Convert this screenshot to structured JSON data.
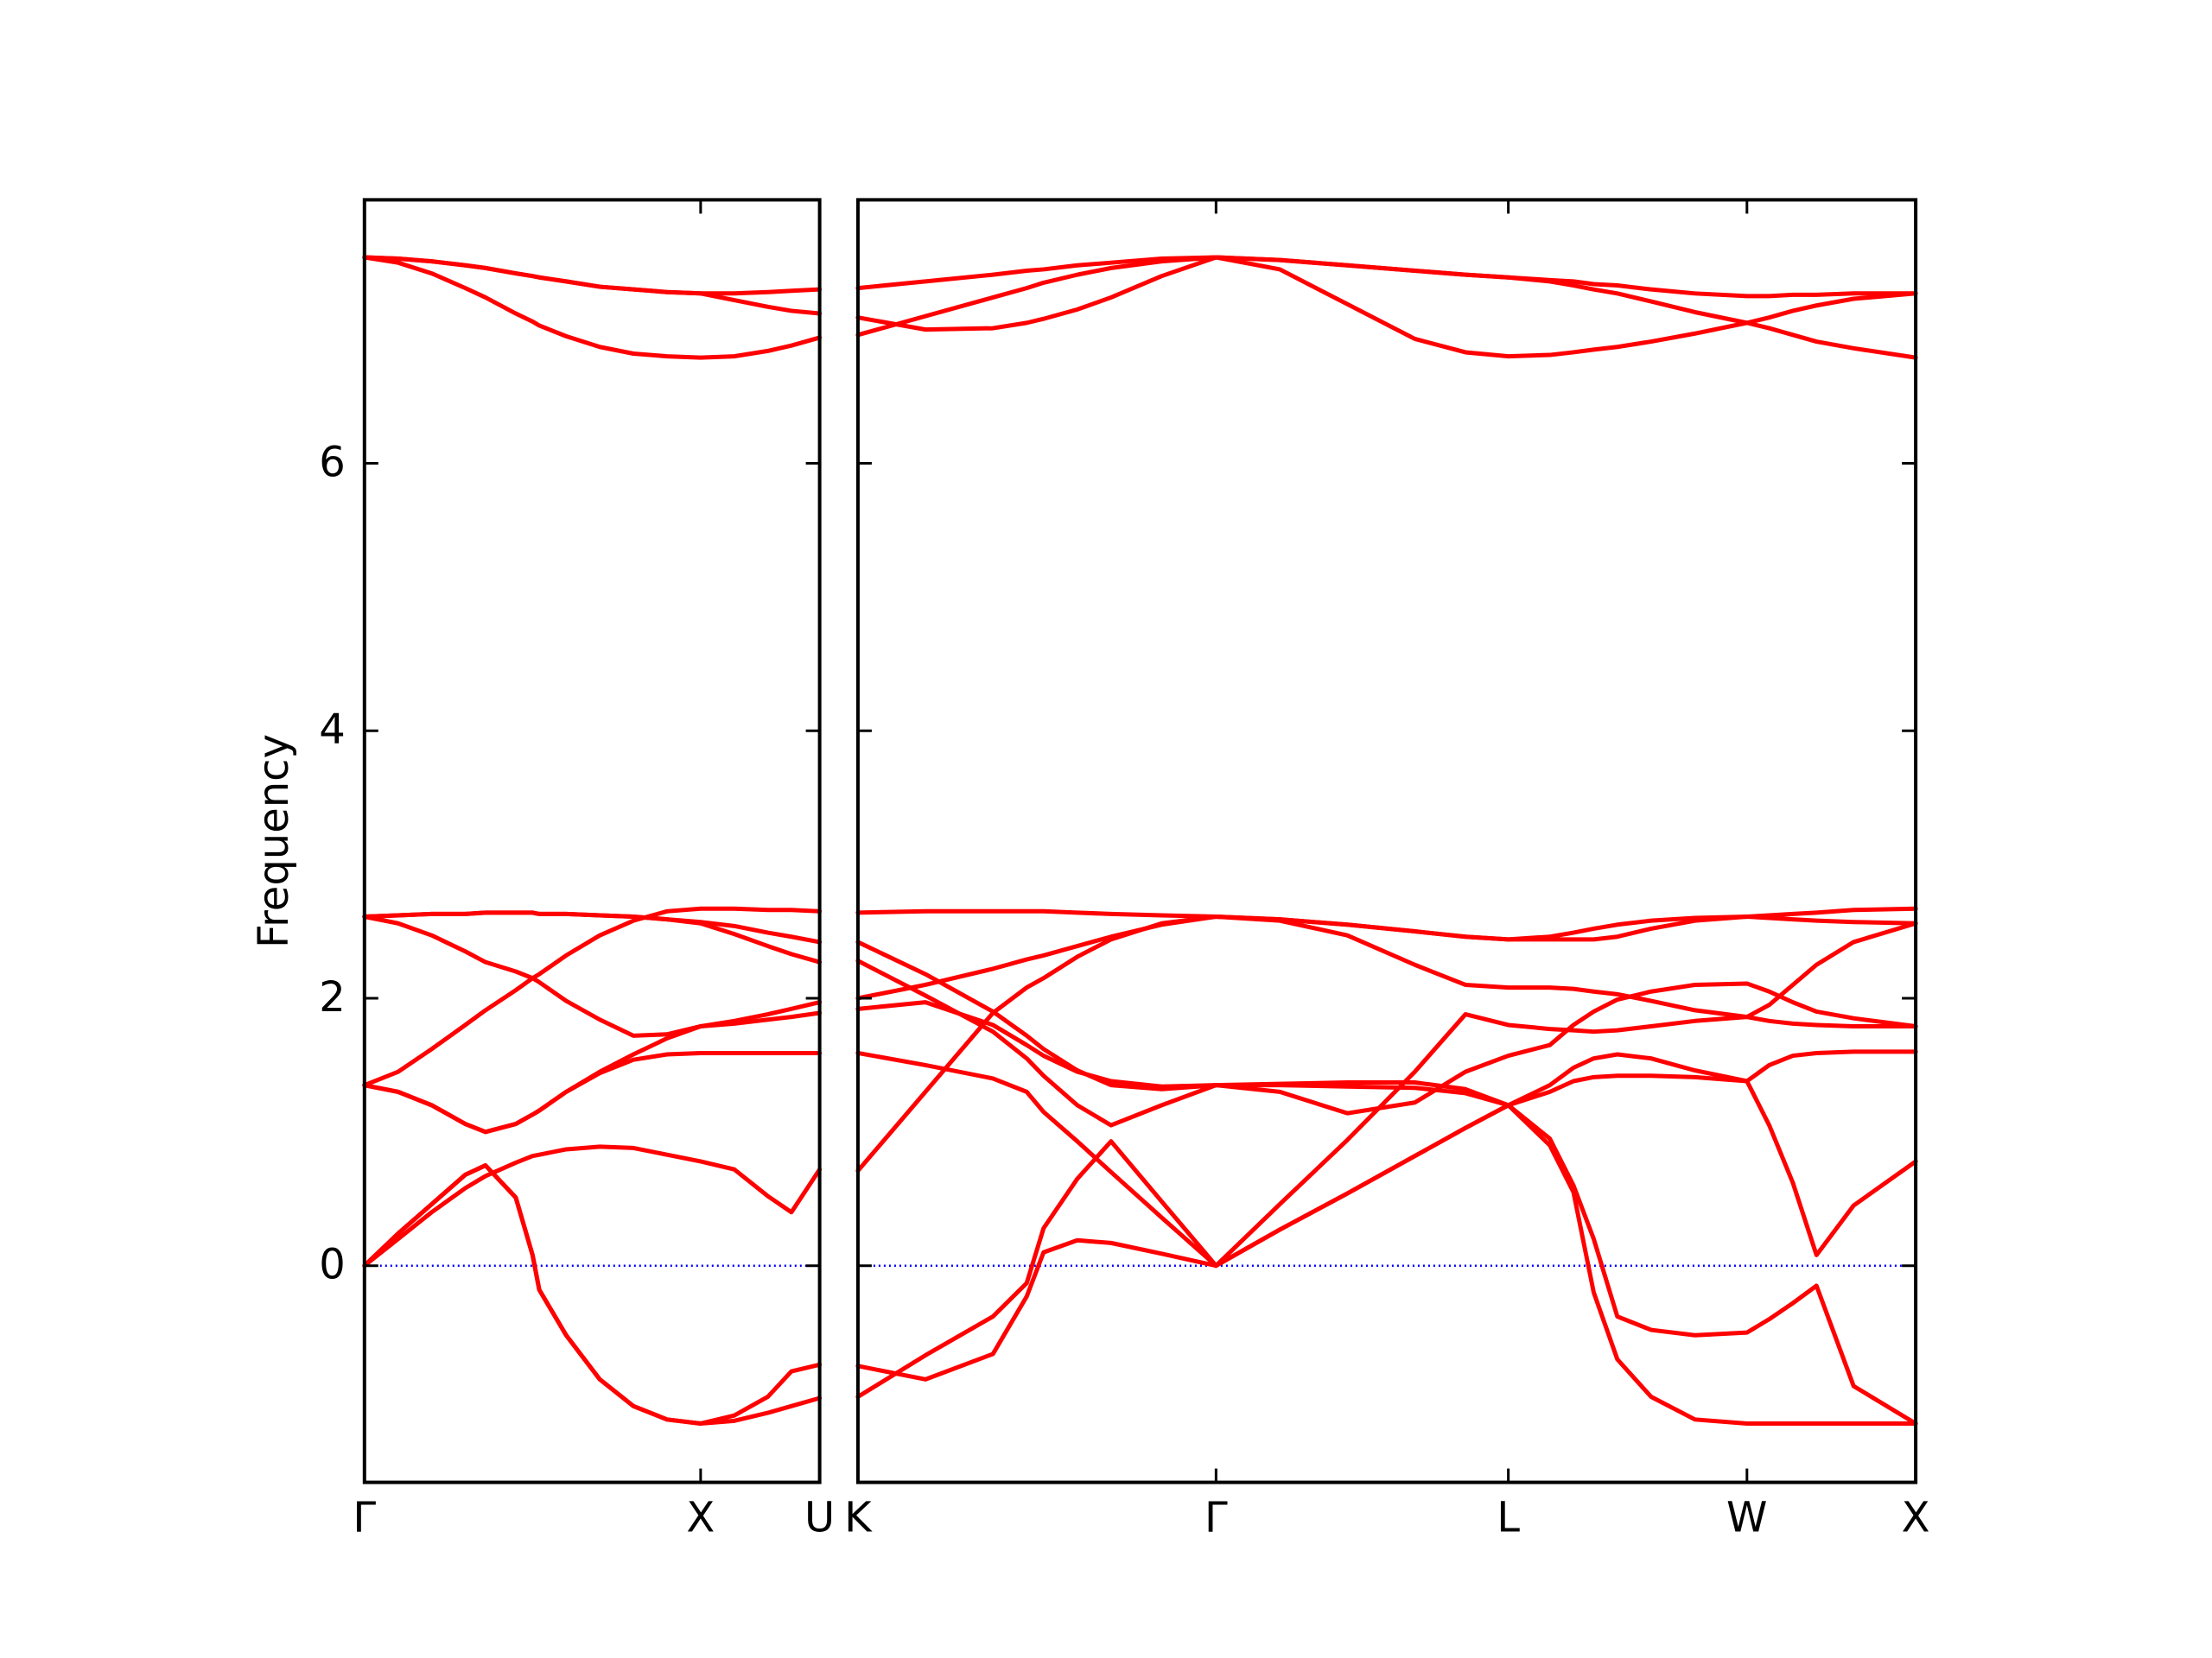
{
  "chart_data": [
    {
      "type": "line",
      "y_label": "Frequency",
      "color": "#ff0000",
      "reference_line": {
        "y": 0,
        "color": "#0000ff"
      },
      "xlim": [
        0,
        1.354
      ],
      "ylim": [
        -1.62,
        7.97
      ],
      "yticks": [
        0,
        2,
        4,
        6
      ],
      "show_ytick_labels": true,
      "xticks": [
        {
          "value": 0,
          "label": "Γ"
        },
        {
          "value": 1,
          "label": "X"
        },
        {
          "value": 1.354,
          "label": "U"
        }
      ],
      "x": [
        0,
        0.1,
        0.2,
        0.3,
        0.36,
        0.45,
        0.5,
        0.52,
        0.6,
        0.7,
        0.8,
        0.9,
        1.0,
        1.1,
        1.2,
        1.27,
        1.354
      ],
      "series": [
        {
          "values": [
            7.54,
            7.53,
            7.51,
            7.48,
            7.46,
            7.42,
            7.4,
            7.39,
            7.36,
            7.32,
            7.3,
            7.28,
            7.27,
            7.27,
            7.28,
            7.29,
            7.3
          ]
        },
        {
          "values": [
            7.54,
            7.53,
            7.51,
            7.48,
            7.46,
            7.42,
            7.4,
            7.39,
            7.36,
            7.32,
            7.3,
            7.28,
            7.27,
            7.22,
            7.17,
            7.14,
            7.12
          ]
        },
        {
          "values": [
            7.54,
            7.5,
            7.42,
            7.31,
            7.24,
            7.12,
            7.06,
            7.03,
            6.95,
            6.87,
            6.82,
            6.8,
            6.79,
            6.8,
            6.84,
            6.88,
            6.94
          ]
        },
        {
          "values": [
            2.61,
            2.62,
            2.63,
            2.63,
            2.64,
            2.64,
            2.64,
            2.63,
            2.63,
            2.62,
            2.61,
            2.59,
            2.57,
            2.54,
            2.49,
            2.46,
            2.42
          ]
        },
        {
          "values": [
            2.61,
            2.62,
            2.63,
            2.63,
            2.64,
            2.64,
            2.64,
            2.63,
            2.63,
            2.62,
            2.61,
            2.59,
            2.56,
            2.48,
            2.39,
            2.33,
            2.27
          ]
        },
        {
          "values": [
            1.35,
            1.45,
            1.62,
            1.8,
            1.91,
            2.06,
            2.15,
            2.18,
            2.32,
            2.47,
            2.58,
            2.65,
            2.67,
            2.67,
            2.66,
            2.66,
            2.65
          ]
        },
        {
          "values": [
            2.61,
            2.56,
            2.47,
            2.35,
            2.27,
            2.2,
            2.15,
            2.12,
            1.98,
            1.84,
            1.72,
            1.73,
            1.79,
            1.83,
            1.88,
            1.92,
            1.97
          ]
        },
        {
          "values": [
            1.35,
            1.3,
            1.2,
            1.06,
            1.0,
            1.06,
            1.13,
            1.16,
            1.3,
            1.45,
            1.58,
            1.7,
            1.79,
            1.81,
            1.84,
            1.86,
            1.89
          ]
        },
        {
          "values": [
            1.35,
            1.3,
            1.2,
            1.06,
            1.0,
            1.06,
            1.13,
            1.16,
            1.3,
            1.44,
            1.54,
            1.58,
            1.59,
            1.59,
            1.59,
            1.59,
            1.59
          ]
        },
        {
          "values": [
            0,
            0.24,
            0.46,
            0.68,
            0.75,
            0.51,
            0.08,
            -0.18,
            -0.52,
            -0.85,
            -1.05,
            -1.15,
            -1.18,
            -1.12,
            -0.98,
            -0.79,
            -0.74
          ]
        },
        {
          "values": [
            0,
            0.2,
            0.4,
            0.58,
            0.67,
            0.77,
            0.82,
            0.83,
            0.87,
            0.89,
            0.88,
            0.83,
            0.78,
            0.72,
            0.52,
            0.4,
            0.72
          ]
        },
        {
          "values": [
            0,
            0.24,
            0.46,
            0.68,
            0.75,
            0.51,
            0.08,
            -0.18,
            -0.52,
            -0.85,
            -1.05,
            -1.15,
            -1.18,
            -1.16,
            -1.1,
            -1.05,
            -0.99
          ]
        }
      ]
    },
    {
      "type": "line",
      "color": "#ff0000",
      "reference_line": {
        "y": 0,
        "color": "#0000ff"
      },
      "xlim": [
        0,
        3.134
      ],
      "ylim": [
        -1.62,
        7.97
      ],
      "yticks": [
        0,
        2,
        4,
        6
      ],
      "show_ytick_labels": false,
      "xticks": [
        {
          "value": 0,
          "label": "K"
        },
        {
          "value": 1.061,
          "label": "Γ"
        },
        {
          "value": 1.927,
          "label": "L"
        },
        {
          "value": 2.634,
          "label": "W"
        },
        {
          "value": 3.134,
          "label": "X"
        }
      ],
      "x": [
        0,
        0.2,
        0.4,
        0.5,
        0.55,
        0.65,
        0.75,
        0.9,
        1.061,
        1.25,
        1.45,
        1.65,
        1.8,
        1.927,
        2.05,
        2.12,
        2.18,
        2.25,
        2.35,
        2.48,
        2.634,
        2.7,
        2.77,
        2.84,
        2.95,
        3.134
      ],
      "series": [
        {
          "values": [
            7.31,
            7.36,
            7.41,
            7.44,
            7.45,
            7.48,
            7.5,
            7.53,
            7.54,
            7.52,
            7.48,
            7.44,
            7.41,
            7.39,
            7.37,
            7.36,
            7.34,
            7.33,
            7.3,
            7.27,
            7.25,
            7.25,
            7.26,
            7.26,
            7.27,
            7.27
          ]
        },
        {
          "values": [
            6.96,
            7.1,
            7.24,
            7.31,
            7.35,
            7.41,
            7.46,
            7.51,
            7.54,
            7.52,
            7.48,
            7.44,
            7.41,
            7.39,
            7.36,
            7.33,
            7.3,
            7.27,
            7.21,
            7.13,
            7.05,
            7.09,
            7.14,
            7.18,
            7.23,
            7.27
          ]
        },
        {
          "values": [
            7.09,
            7.0,
            7.01,
            7.05,
            7.08,
            7.15,
            7.24,
            7.4,
            7.54,
            7.45,
            7.19,
            6.93,
            6.83,
            6.8,
            6.81,
            6.83,
            6.85,
            6.87,
            6.91,
            6.97,
            7.05,
            7.01,
            6.96,
            6.91,
            6.86,
            6.79
          ]
        },
        {
          "values": [
            2.64,
            2.65,
            2.65,
            2.65,
            2.65,
            2.64,
            2.63,
            2.62,
            2.61,
            2.59,
            2.55,
            2.5,
            2.46,
            2.44,
            2.44,
            2.44,
            2.44,
            2.46,
            2.52,
            2.58,
            2.61,
            2.62,
            2.63,
            2.64,
            2.66,
            2.67
          ]
        },
        {
          "values": [
            2.0,
            2.1,
            2.22,
            2.29,
            2.32,
            2.39,
            2.46,
            2.55,
            2.61,
            2.59,
            2.55,
            2.5,
            2.46,
            2.44,
            2.46,
            2.49,
            2.52,
            2.55,
            2.58,
            2.6,
            2.61,
            2.6,
            2.59,
            2.58,
            2.57,
            2.56
          ]
        },
        {
          "values": [
            0.71,
            1.3,
            1.89,
            2.08,
            2.15,
            2.31,
            2.44,
            2.56,
            2.61,
            2.58,
            2.47,
            2.25,
            2.1,
            2.08,
            2.08,
            2.07,
            2.05,
            2.03,
            1.98,
            1.91,
            1.86,
            1.95,
            2.1,
            2.25,
            2.42,
            2.56
          ]
        },
        {
          "values": [
            2.42,
            2.18,
            1.9,
            1.72,
            1.62,
            1.46,
            1.35,
            1.32,
            1.35,
            1.36,
            1.37,
            1.37,
            1.32,
            1.2,
            1.3,
            1.38,
            1.41,
            1.42,
            1.42,
            1.41,
            1.38,
            1.5,
            1.57,
            1.59,
            1.6,
            1.6
          ]
        },
        {
          "values": [
            2.28,
            2.02,
            1.75,
            1.55,
            1.42,
            1.2,
            1.05,
            1.2,
            1.35,
            1.3,
            1.14,
            1.22,
            1.45,
            1.57,
            1.65,
            1.8,
            1.9,
            1.99,
            2.05,
            2.1,
            2.11,
            2.05,
            1.97,
            1.9,
            1.85,
            1.79
          ]
        },
        {
          "values": [
            1.92,
            1.97,
            1.8,
            1.65,
            1.57,
            1.45,
            1.38,
            1.34,
            1.35,
            1.35,
            1.34,
            1.33,
            1.29,
            1.2,
            0.95,
            0.6,
            0.2,
            -0.38,
            -0.48,
            -0.52,
            -0.5,
            -0.4,
            -0.28,
            -0.15,
            -0.9,
            -1.18
          ]
        },
        {
          "values": [
            1.59,
            1.5,
            1.4,
            1.3,
            1.15,
            0.93,
            0.7,
            0.36,
            0,
            0.46,
            0.94,
            1.45,
            1.88,
            1.8,
            1.77,
            1.76,
            1.75,
            1.76,
            1.79,
            1.83,
            1.86,
            1.83,
            1.81,
            1.8,
            1.79,
            1.79
          ]
        },
        {
          "values": [
            -0.75,
            -0.85,
            -0.66,
            -0.23,
            0.1,
            0.19,
            0.17,
            0.09,
            0,
            0.27,
            0.54,
            0.82,
            1.03,
            1.2,
            1.35,
            1.48,
            1.55,
            1.58,
            1.55,
            1.46,
            1.38,
            1.05,
            0.62,
            0.08,
            0.45,
            0.78
          ]
        },
        {
          "values": [
            -0.98,
            -0.67,
            -0.38,
            -0.13,
            0.28,
            0.65,
            0.93,
            0.48,
            0,
            0.27,
            0.54,
            0.82,
            1.03,
            1.2,
            0.9,
            0.55,
            -0.2,
            -0.7,
            -0.98,
            -1.15,
            -1.18,
            -1.18,
            -1.18,
            -1.18,
            -1.18,
            -1.18
          ]
        }
      ]
    }
  ]
}
